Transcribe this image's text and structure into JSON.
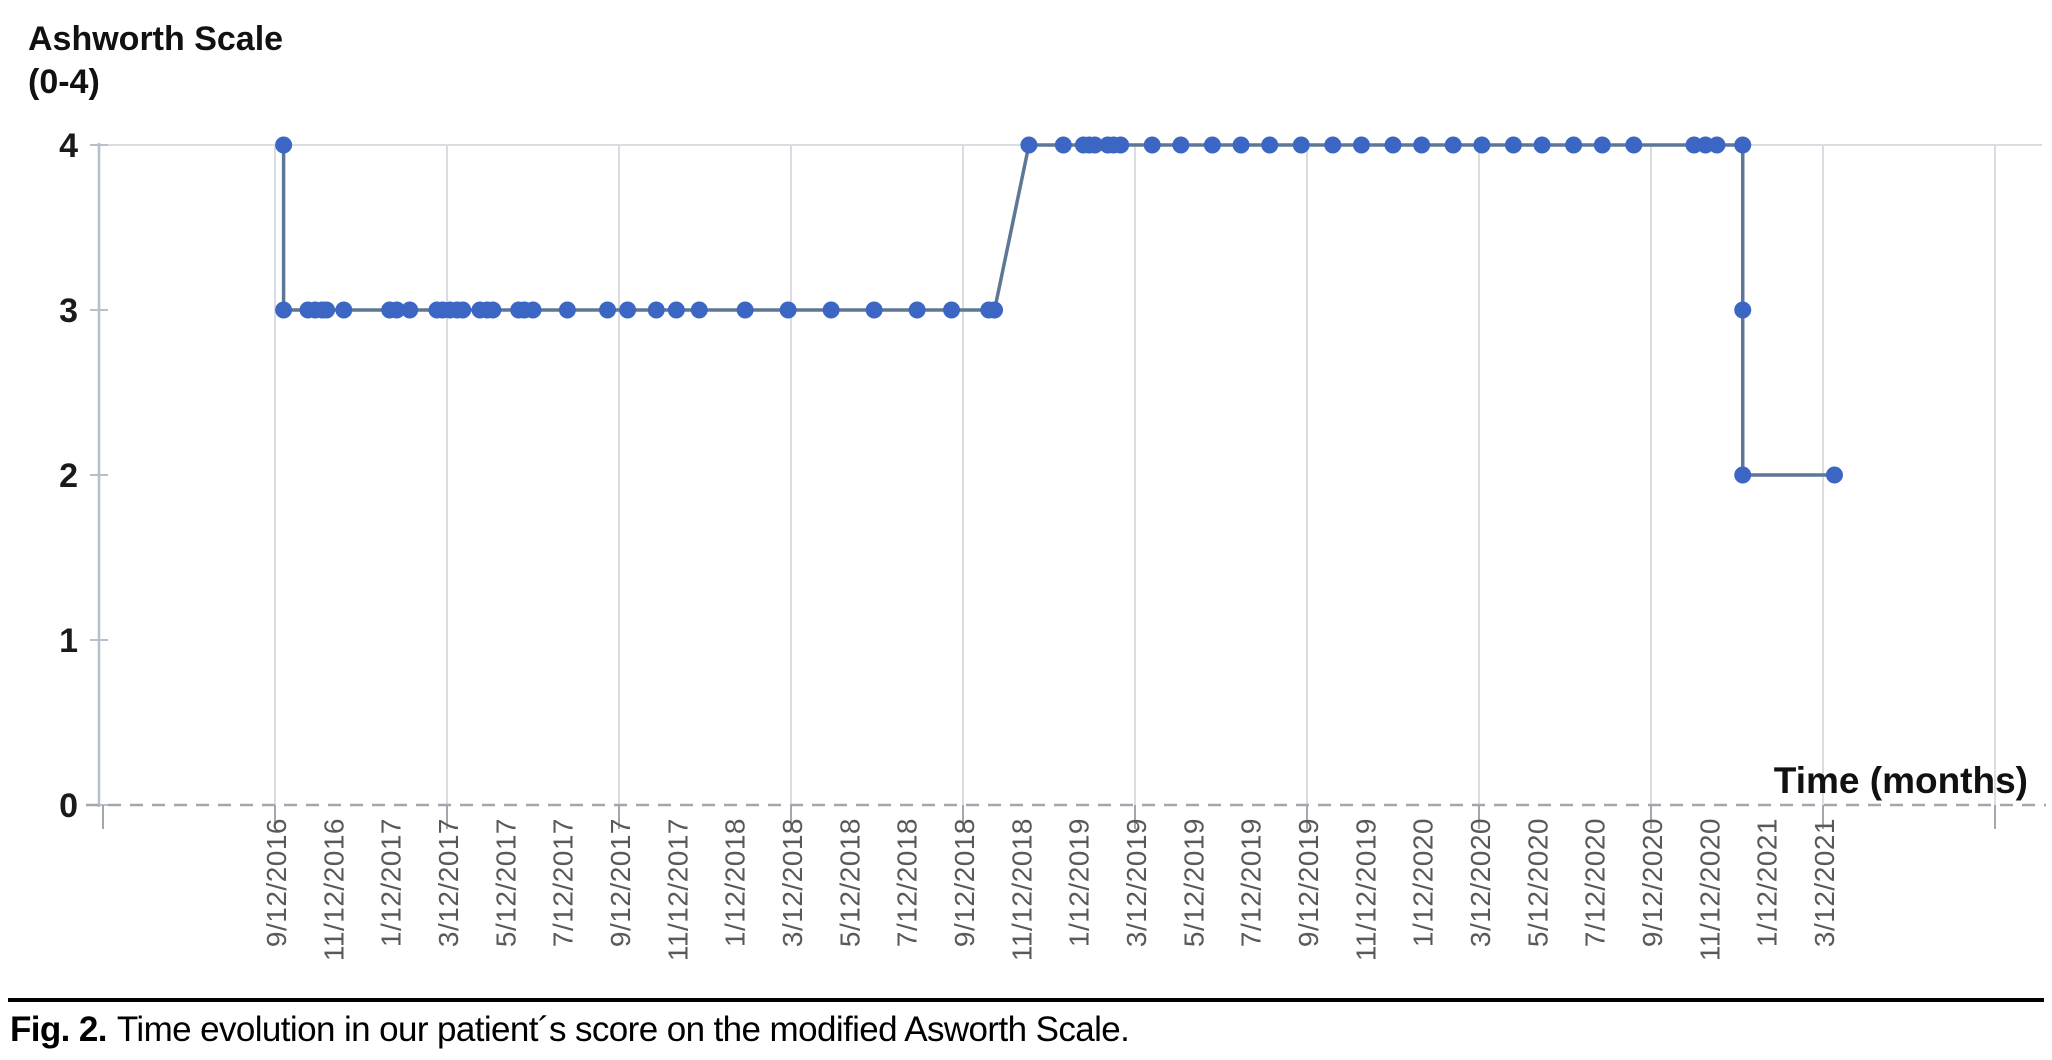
{
  "figure": {
    "y_axis_title_line1": "Ashworth Scale",
    "y_axis_title_line2": "(0-4)",
    "x_axis_title": "Time (months)",
    "caption_label": "Fig. 2.",
    "caption_text": "Time evolution in our patient´s score on the modified Asworth Scale."
  },
  "style": {
    "grid_color": "#d9dce1",
    "axis_color": "#b6c0cd",
    "dash_color": "#a3a7ad",
    "x_label_color": "#595959",
    "y_label_color": "#1a1a1a"
  },
  "chart_data": {
    "type": "line",
    "title": "",
    "xlabel": "Time (months)",
    "ylabel": "Ashworth Scale (0-4)",
    "x_axis": {
      "tick_labels": [
        "9/12/2016",
        "11/12/2016",
        "1/12/2017",
        "3/12/2017",
        "5/12/2017",
        "7/12/2017",
        "9/12/2017",
        "11/12/2017",
        "1/12/2018",
        "3/12/2018",
        "5/12/2018",
        "7/12/2018",
        "9/12/2018",
        "11/12/2018",
        "1/12/2019",
        "3/12/2019",
        "5/12/2019",
        "7/12/2019",
        "9/12/2019",
        "11/12/2019",
        "1/12/2020",
        "3/12/2020",
        "5/12/2020",
        "7/12/2020",
        "9/12/2020",
        "11/12/2020",
        "1/12/2021",
        "3/12/2021"
      ],
      "tick_spacing_months": 2,
      "gridline_spacing_months": 6,
      "range_months_from_first_label": [
        -6,
        61
      ],
      "grid": "vertical-only"
    },
    "y_axis": {
      "ticks": [
        0,
        1,
        2,
        3,
        4
      ],
      "range": [
        0,
        4
      ],
      "grid": "off"
    },
    "legend": "none",
    "series": [
      {
        "name": "Modified Ashworth Scale score",
        "marker_color": "#3c66c4",
        "line_color": "#5d7795",
        "x_unit": "months since 9/12/2016",
        "points": [
          [
            0.3,
            4
          ],
          [
            0.3,
            3
          ],
          [
            1.15,
            3
          ],
          [
            1.4,
            3
          ],
          [
            1.65,
            3
          ],
          [
            1.8,
            3
          ],
          [
            2.4,
            3
          ],
          [
            4.0,
            3
          ],
          [
            4.25,
            3
          ],
          [
            4.7,
            3
          ],
          [
            5.65,
            3
          ],
          [
            5.85,
            3
          ],
          [
            6.1,
            3
          ],
          [
            6.35,
            3
          ],
          [
            6.55,
            3
          ],
          [
            7.15,
            3
          ],
          [
            7.4,
            3
          ],
          [
            7.6,
            3
          ],
          [
            8.5,
            3
          ],
          [
            8.7,
            3
          ],
          [
            9.0,
            3
          ],
          [
            10.2,
            3
          ],
          [
            11.6,
            3
          ],
          [
            12.3,
            3
          ],
          [
            13.3,
            3
          ],
          [
            14.0,
            3
          ],
          [
            14.8,
            3
          ],
          [
            16.4,
            3
          ],
          [
            17.9,
            3
          ],
          [
            19.4,
            3
          ],
          [
            20.9,
            3
          ],
          [
            22.4,
            3
          ],
          [
            23.6,
            3
          ],
          [
            24.9,
            3
          ],
          [
            25.1,
            3
          ],
          [
            26.3,
            4
          ],
          [
            27.5,
            4
          ],
          [
            28.2,
            4
          ],
          [
            28.4,
            4
          ],
          [
            28.6,
            4
          ],
          [
            29.05,
            4
          ],
          [
            29.25,
            4
          ],
          [
            29.5,
            4
          ],
          [
            30.6,
            4
          ],
          [
            31.6,
            4
          ],
          [
            32.7,
            4
          ],
          [
            33.7,
            4
          ],
          [
            34.7,
            4
          ],
          [
            35.8,
            4
          ],
          [
            36.9,
            4
          ],
          [
            37.9,
            4
          ],
          [
            39.0,
            4
          ],
          [
            40.0,
            4
          ],
          [
            41.1,
            4
          ],
          [
            42.1,
            4
          ],
          [
            43.2,
            4
          ],
          [
            44.2,
            4
          ],
          [
            45.3,
            4
          ],
          [
            46.3,
            4
          ],
          [
            47.4,
            4
          ],
          [
            49.5,
            4
          ],
          [
            49.9,
            4
          ],
          [
            50.3,
            4
          ],
          [
            51.2,
            4
          ],
          [
            51.2,
            3
          ],
          [
            51.2,
            2
          ],
          [
            54.4,
            2
          ]
        ]
      }
    ]
  }
}
